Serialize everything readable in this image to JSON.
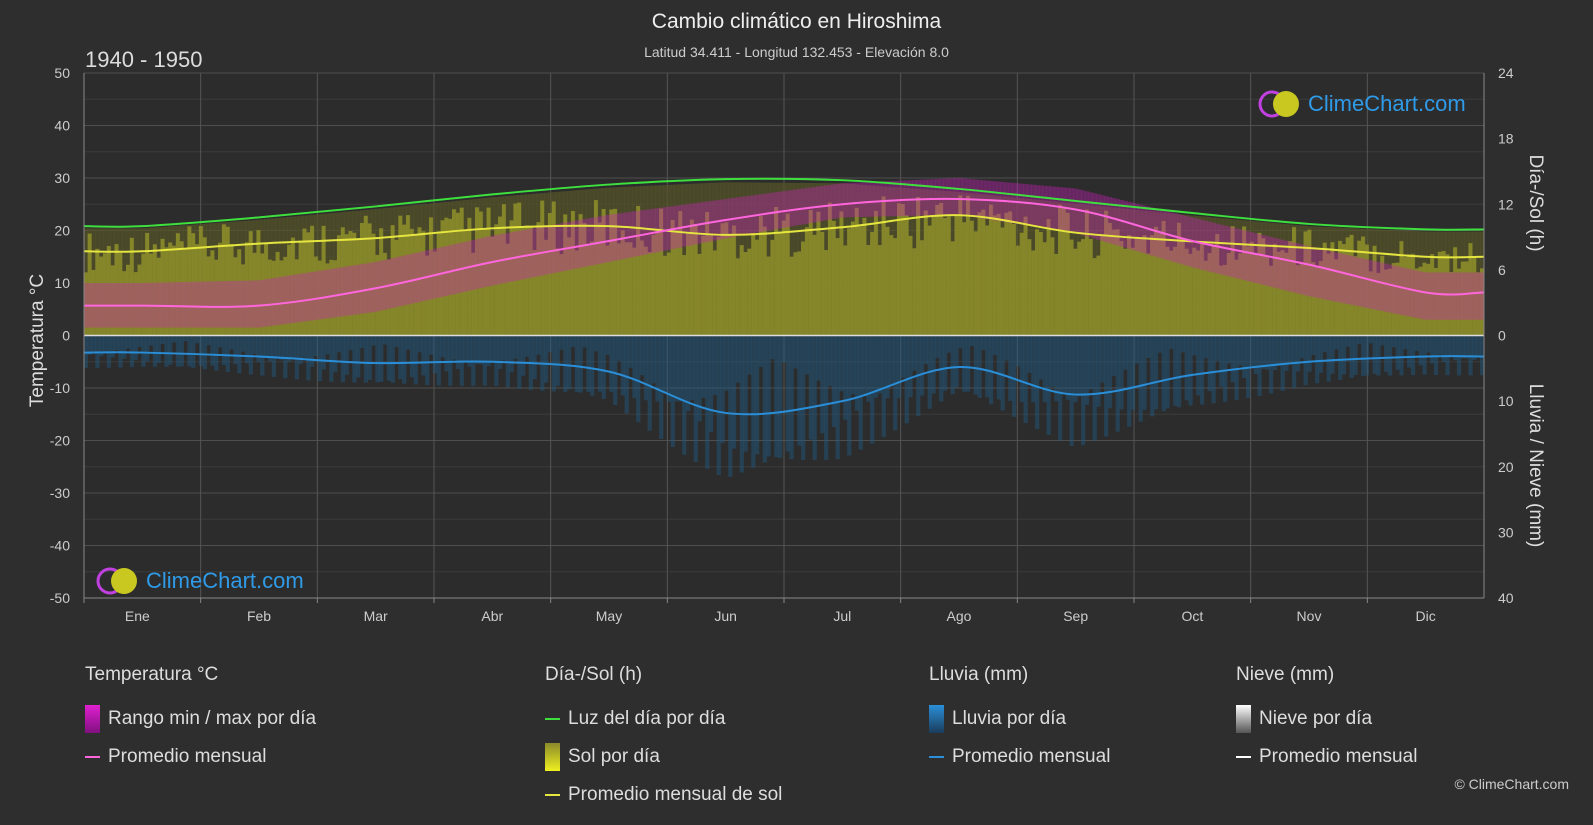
{
  "header": {
    "title": "Cambio climático en Hiroshima",
    "subtitle": "Latitud 34.411 - Longitud 132.453 - Elevación 8.0",
    "period": "1940 - 1950"
  },
  "logo": {
    "text": "ClimeChart.com"
  },
  "copyright": "© ClimeChart.com",
  "colors": {
    "background": "#2e2e2e",
    "daylight": "#3ee03e",
    "sunshine_avg": "#e6e640",
    "sunshine_fill": "#8f8f2a",
    "temp_avg": "#ff66dd",
    "temp_range": "#d020c0",
    "rain": "#2a8fd8",
    "snow": "#ffffff"
  },
  "legend": {
    "temp": {
      "title": "Temperatura °C",
      "range": "Rango min / max por día",
      "avg": "Promedio mensual"
    },
    "sun": {
      "title": "Día-/Sol (h)",
      "daylight": "Luz del día por día",
      "sun": "Sol por día",
      "avg": "Promedio mensual de sol"
    },
    "rain": {
      "title": "Lluvia (mm)",
      "daily": "Lluvia por día",
      "avg": "Promedio mensual"
    },
    "snow": {
      "title": "Nieve (mm)",
      "daily": "Nieve por día",
      "avg": "Promedio mensual"
    }
  },
  "chart_data": {
    "type": "line",
    "categories": [
      "Ene",
      "Feb",
      "Mar",
      "Abr",
      "May",
      "Jun",
      "Jul",
      "Ago",
      "Sep",
      "Oct",
      "Nov",
      "Dic"
    ],
    "axes": {
      "left": {
        "label": "Temperatura °C",
        "min": -50,
        "max": 50,
        "ticks": [
          50,
          40,
          30,
          20,
          10,
          0,
          -10,
          -20,
          -30,
          -40,
          -50
        ]
      },
      "right_top": {
        "label": "Día-/Sol (h)",
        "min": 0,
        "max": 24,
        "ticks": [
          24,
          18,
          12,
          6,
          0
        ]
      },
      "right_bottom": {
        "label": "Lluvia / Nieve (mm)",
        "min": 0,
        "max": 40,
        "ticks": [
          0,
          10,
          20,
          30,
          40
        ]
      }
    },
    "grid": true,
    "series": [
      {
        "name": "Luz del día por día",
        "axis": "right_top",
        "values": [
          10.0,
          10.8,
          11.8,
          12.9,
          13.8,
          14.3,
          14.2,
          13.4,
          12.3,
          11.2,
          10.2,
          9.7
        ]
      },
      {
        "name": "Promedio mensual de sol",
        "axis": "right_top",
        "values": [
          7.7,
          8.4,
          8.9,
          9.8,
          10.0,
          9.2,
          9.9,
          11.0,
          9.4,
          8.6,
          8.0,
          7.2
        ]
      },
      {
        "name": "Promedio mensual",
        "kind": "temperature",
        "axis": "left",
        "values": [
          5.7,
          5.7,
          9.0,
          14.0,
          18.0,
          22.0,
          25.0,
          26.0,
          24.0,
          18.0,
          13.5,
          8.2
        ]
      },
      {
        "name": "Rango min / max por día",
        "kind": "temperature_range",
        "axis": "left",
        "min": [
          1.5,
          1.5,
          4.5,
          9.5,
          14.0,
          18.5,
          22.5,
          23.0,
          19.5,
          13.0,
          7.5,
          3.0
        ],
        "max": [
          10.0,
          10.5,
          14.0,
          19.0,
          23.0,
          26.0,
          29.0,
          30.0,
          28.0,
          22.5,
          17.0,
          12.0
        ]
      },
      {
        "name": "Promedio mensual",
        "kind": "rain",
        "axis": "right_bottom",
        "values": [
          2.6,
          3.2,
          4.2,
          4.0,
          5.5,
          11.8,
          10.0,
          4.8,
          9.0,
          6.0,
          4.0,
          3.2
        ]
      }
    ]
  }
}
